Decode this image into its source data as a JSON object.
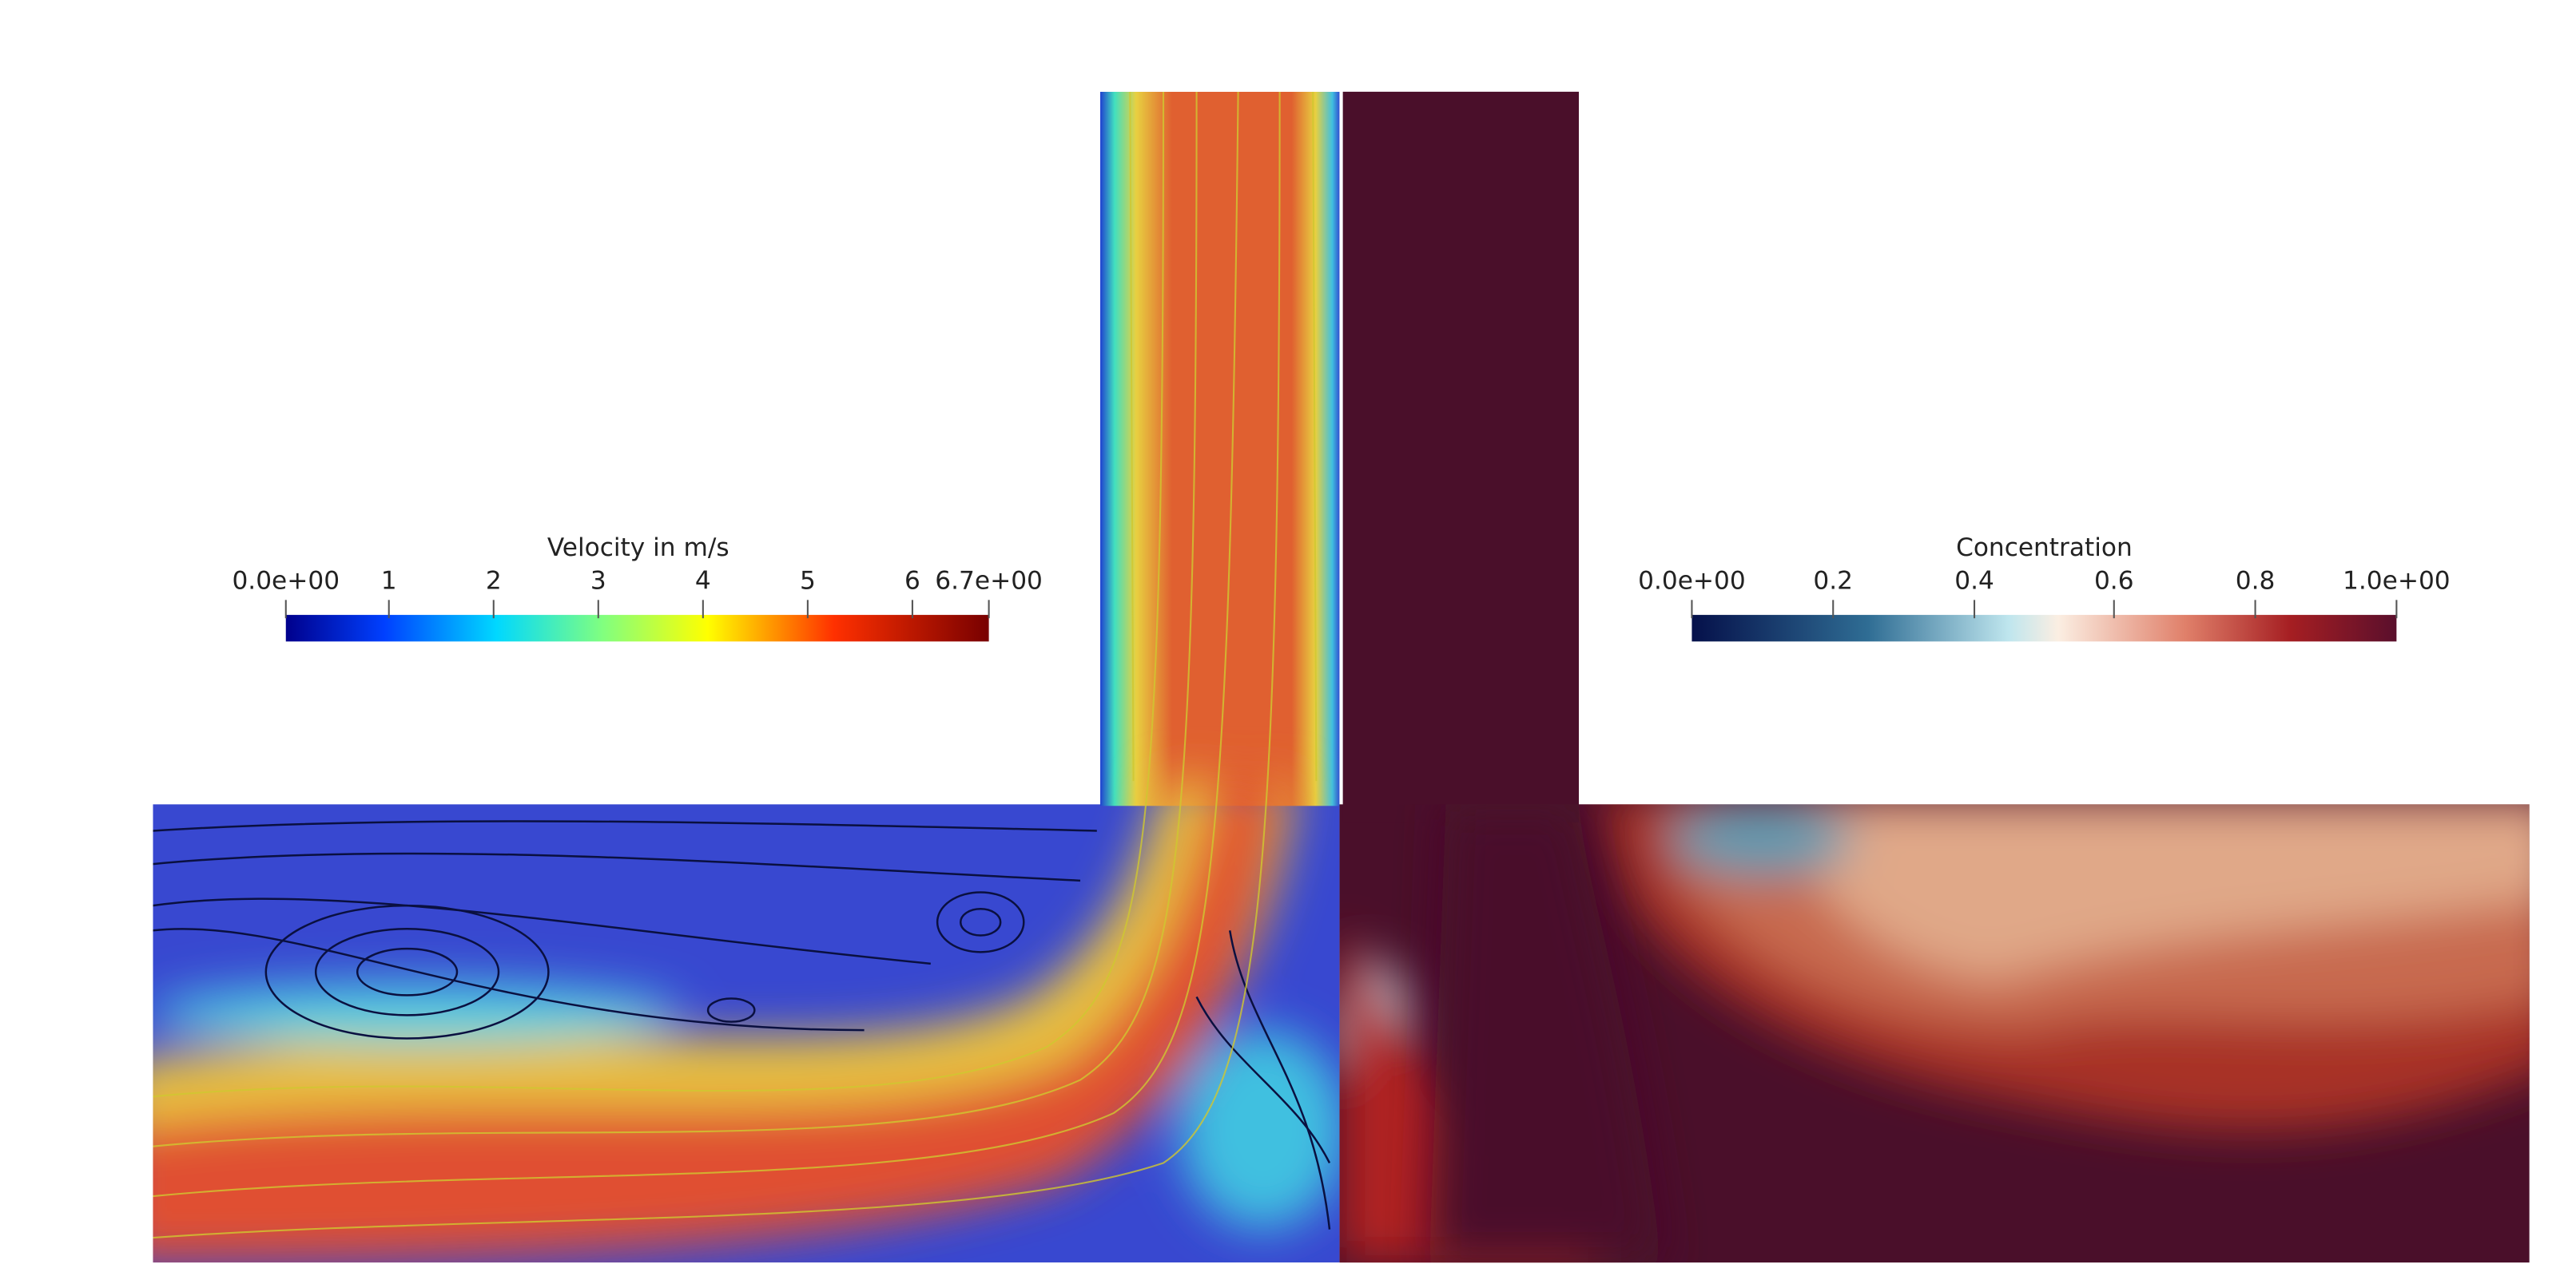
{
  "velocity_legend": {
    "title": "Velocity in m/s",
    "ticks": [
      "0.0e+00",
      "1",
      "2",
      "3",
      "4",
      "5",
      "6",
      "6.7e+00"
    ]
  },
  "concentration_legend": {
    "title": "Concentration",
    "ticks": [
      "0.0e+00",
      "0.2",
      "0.4",
      "0.6",
      "0.8",
      "1.0e+00"
    ]
  }
}
